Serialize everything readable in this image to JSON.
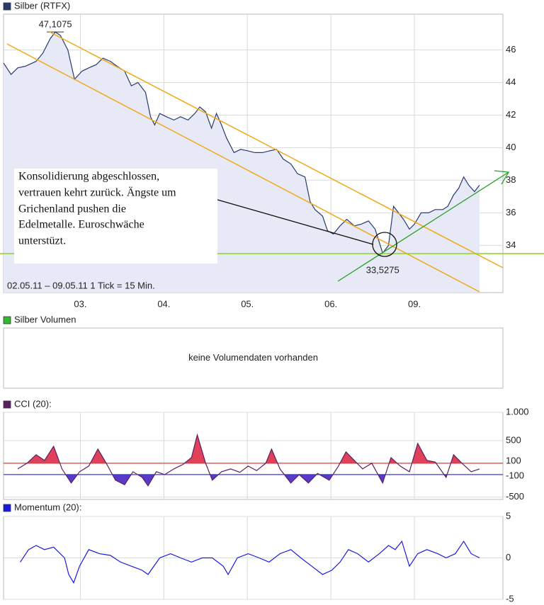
{
  "chart_data": [
    {
      "type": "line",
      "x": [
        0.08,
        0.17,
        0.25,
        0.34,
        0.47,
        0.55,
        0.64,
        0.7,
        0.76,
        0.85,
        0.93,
        1.02,
        1.1,
        1.19,
        1.27,
        1.36,
        1.44,
        1.53,
        1.61,
        1.69,
        1.78,
        1.84,
        1.89,
        1.95,
        2.03,
        2.12,
        2.2,
        2.29,
        2.37,
        2.43,
        2.5,
        2.57,
        2.63,
        2.69,
        2.75,
        2.84,
        2.92,
        3.01,
        3.09,
        3.18,
        3.26,
        3.35,
        3.43,
        3.52,
        3.6,
        3.69,
        3.75,
        3.81,
        3.9,
        3.96,
        4.03,
        4.11,
        4.19,
        4.28,
        4.36,
        4.45,
        4.53,
        4.62,
        4.69,
        4.75,
        4.81,
        4.87,
        4.94,
        5.0,
        5.08,
        5.17,
        5.25,
        5.34,
        5.4,
        5.47,
        5.53,
        5.59,
        5.65,
        5.72,
        5.78
      ],
      "series": [
        {
          "name": "Silber (RTFX)",
          "color": "#283c6e",
          "values": [
            45.2,
            44.5,
            44.9,
            45.0,
            45.3,
            45.8,
            46.7,
            47.1075,
            46.9,
            46.0,
            44.2,
            44.7,
            44.9,
            45.1,
            45.5,
            45.3,
            45.0,
            44.7,
            43.8,
            44.0,
            43.4,
            41.9,
            41.4,
            42.1,
            41.9,
            41.7,
            41.9,
            41.7,
            42.1,
            42.5,
            42.2,
            41.2,
            42.1,
            41.4,
            40.6,
            39.7,
            39.9,
            39.8,
            39.7,
            39.7,
            39.8,
            39.9,
            39.3,
            39.0,
            38.4,
            38.2,
            36.7,
            36.2,
            35.8,
            34.9,
            34.7,
            35.2,
            35.6,
            35.2,
            35.3,
            35.5,
            35.0,
            33.5275,
            34.0,
            36.4,
            36.0,
            35.6,
            35.0,
            35.3,
            36.0,
            36.0,
            36.2,
            36.2,
            36.4,
            37.1,
            37.5,
            38.2,
            37.7,
            37.3,
            37.7
          ]
        }
      ],
      "xlim": [
        0.08,
        6.06
      ],
      "xticks": [
        {
          "value": 1,
          "label": "03."
        },
        {
          "value": 2,
          "label": "04."
        },
        {
          "value": 3,
          "label": "05."
        },
        {
          "value": 4,
          "label": "06."
        },
        {
          "value": 5,
          "label": "09."
        }
      ],
      "ylim": [
        31.1,
        48.2
      ],
      "yticks": [
        34,
        36,
        38,
        40,
        42,
        44,
        46
      ],
      "grid": true,
      "annotations": [
        {
          "text": "47,1075",
          "x": 0.7,
          "y": 47.1075
        },
        {
          "text": "33,5275",
          "x": 4.62,
          "y": 33.5275
        }
      ],
      "note": [
        "Konsolidierung abgeschlossen,",
        "vertrauen kehrt zurück. Ängste um",
        "Grichenland pushen die",
        "Edelmetalle. Euroschwäche",
        "unterstüzt."
      ],
      "footnote": "02.05.11 – 09.05.11   1 Tick = 15 Min."
    },
    {
      "type": "bar",
      "title": "Silber Volumen",
      "color": "#33b833",
      "message": "keine Volumendaten vorhanden"
    },
    {
      "type": "line",
      "x": [
        0.25,
        0.36,
        0.47,
        0.57,
        0.68,
        0.78,
        0.89,
        0.99,
        1.1,
        1.21,
        1.31,
        1.42,
        1.53,
        1.63,
        1.74,
        1.81,
        1.91,
        2.01,
        2.12,
        2.23,
        2.33,
        2.4,
        2.5,
        2.58,
        2.69,
        2.8,
        2.91,
        3.01,
        3.11,
        3.22,
        3.29,
        3.39,
        3.52,
        3.62,
        3.73,
        3.84,
        3.98,
        4.09,
        4.18,
        4.28,
        4.38,
        4.49,
        4.62,
        4.72,
        4.83,
        4.94,
        5.04,
        5.15,
        5.25,
        5.38,
        5.47,
        5.57,
        5.68,
        5.78
      ],
      "series": [
        {
          "name": "CCI (20):",
          "color": "#5a2060",
          "values": [
            0,
            100,
            250,
            150,
            400,
            0,
            -250,
            -50,
            50,
            350,
            100,
            -200,
            -280,
            -50,
            -150,
            -300,
            -50,
            -100,
            0,
            80,
            200,
            600,
            100,
            -200,
            -50,
            0,
            -60,
            50,
            -30,
            100,
            350,
            0,
            -250,
            -100,
            -250,
            -80,
            -200,
            50,
            300,
            150,
            0,
            100,
            -250,
            200,
            50,
            -50,
            450,
            150,
            120,
            -150,
            250,
            100,
            -50,
            0
          ]
        }
      ],
      "ylim": [
        -540,
        1000
      ],
      "yticks": [
        {
          "value": 1000,
          "label": "1.000"
        },
        500,
        -500
      ],
      "hlines": [
        {
          "value": 100,
          "color": "#e03a3a"
        },
        {
          "value": -100,
          "color": "#3a3ae0"
        }
      ],
      "fills": {
        "above": "#e0405a",
        "below": "#5a3ac8"
      },
      "grid": true
    },
    {
      "type": "line",
      "x": [
        0.28,
        0.38,
        0.47,
        0.57,
        0.68,
        0.81,
        0.86,
        0.92,
        0.99,
        1.1,
        1.23,
        1.36,
        1.48,
        1.61,
        1.74,
        1.81,
        1.95,
        2.08,
        2.2,
        2.33,
        2.46,
        2.58,
        2.71,
        2.77,
        2.88,
        3.01,
        3.14,
        3.26,
        3.39,
        3.52,
        3.64,
        3.77,
        3.9,
        4.01,
        4.11,
        4.21,
        4.32,
        4.45,
        4.58,
        4.69,
        4.77,
        4.85,
        4.94,
        5.04,
        5.15,
        5.28,
        5.38,
        5.49,
        5.59,
        5.68,
        5.78
      ],
      "series": [
        {
          "name": "Momentum (20):",
          "color": "#1a1ae0",
          "values": [
            -0.5,
            1,
            1.5,
            1,
            1.3,
            0,
            -2,
            -3,
            -1,
            1,
            0.5,
            0.3,
            -0.5,
            -1,
            -1.5,
            -2,
            0,
            0.5,
            0,
            -0.5,
            0,
            0,
            -1,
            -2,
            0,
            0.5,
            0,
            -0.5,
            0.5,
            1,
            0,
            -1,
            -2,
            -1.5,
            -0.5,
            1,
            0.5,
            -0.5,
            0.5,
            1.5,
            1,
            2,
            -1,
            0.5,
            1,
            0.5,
            0,
            0.5,
            2,
            0.5,
            0
          ]
        }
      ],
      "ylim": [
        -5,
        5
      ],
      "yticks": [
        5,
        0,
        -5
      ],
      "grid": true
    }
  ]
}
